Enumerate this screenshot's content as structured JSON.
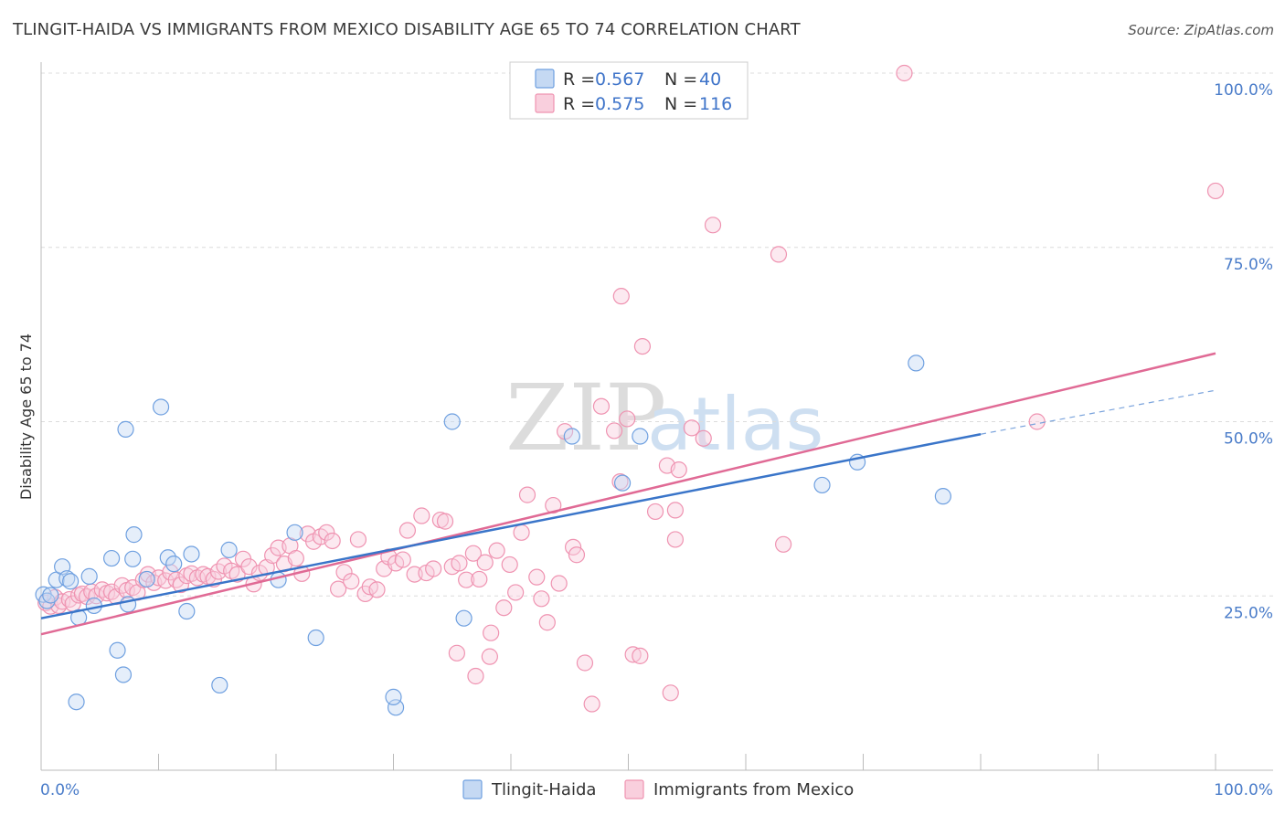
{
  "header": {
    "title": "TLINGIT-HAIDA VS IMMIGRANTS FROM MEXICO DISABILITY AGE 65 TO 74 CORRELATION CHART",
    "source": "Source: ZipAtlas.com"
  },
  "watermark": {
    "zip": "ZIP",
    "atlas": "atlas"
  },
  "legend": {
    "rows": [
      {
        "r_label": "R = ",
        "r_value": "0.567",
        "n_label": "N = ",
        "n_value": "40",
        "color": "#6fa0e0"
      },
      {
        "r_label": "R = ",
        "r_value": "0.575",
        "n_label": "N = ",
        "n_value": "116",
        "color": "#ef93b1"
      }
    ]
  },
  "bottom_legend": [
    {
      "label": "Tlingit-Haida",
      "color": "#6fa0e0"
    },
    {
      "label": "Immigrants from Mexico",
      "color": "#ef93b1"
    }
  ],
  "chart_data": {
    "type": "scatter",
    "title": "TLINGIT-HAIDA VS IMMIGRANTS FROM MEXICO DISABILITY AGE 65 TO 74 CORRELATION CHART",
    "xlabel": "",
    "ylabel": "Disability Age 65 to 74",
    "xlim": [
      0,
      100
    ],
    "ylim": [
      0,
      100
    ],
    "x_tick_labels": {
      "left": "0.0%",
      "right": "100.0%"
    },
    "y_ticks": [
      25,
      50,
      75,
      100
    ],
    "y_tick_labels": [
      "25.0%",
      "50.0%",
      "75.0%",
      "100.0%"
    ],
    "grid": true,
    "legend_position": "top-center",
    "series": [
      {
        "name": "Tlingit-Haida",
        "color": "#6fa0e0",
        "trend": {
          "x": [
            0,
            80
          ],
          "y": [
            21.8,
            48.2
          ],
          "dashed_extension_to": [
            100,
            54.5
          ]
        },
        "points": [
          [
            0.2,
            25.2
          ],
          [
            0.5,
            24.3
          ],
          [
            0.8,
            25.1
          ],
          [
            1.3,
            27.3
          ],
          [
            1.8,
            29.2
          ],
          [
            2.2,
            27.5
          ],
          [
            2.5,
            27.1
          ],
          [
            3.2,
            21.9
          ],
          [
            4.1,
            27.8
          ],
          [
            4.5,
            23.6
          ],
          [
            6.0,
            30.4
          ],
          [
            6.5,
            17.2
          ],
          [
            7.0,
            13.7
          ],
          [
            7.2,
            48.9
          ],
          [
            7.4,
            23.8
          ],
          [
            7.8,
            30.3
          ],
          [
            7.9,
            33.8
          ],
          [
            9.0,
            27.4
          ],
          [
            10.2,
            52.1
          ],
          [
            10.8,
            30.5
          ],
          [
            11.3,
            29.6
          ],
          [
            12.4,
            22.8
          ],
          [
            12.8,
            31.0
          ],
          [
            15.2,
            12.2
          ],
          [
            16.0,
            31.6
          ],
          [
            20.2,
            27.3
          ],
          [
            21.6,
            34.1
          ],
          [
            23.4,
            19.0
          ],
          [
            35.0,
            50.0
          ],
          [
            36.0,
            21.8
          ],
          [
            30.2,
            9.0
          ],
          [
            3.0,
            9.8
          ],
          [
            30.0,
            10.5
          ],
          [
            45.2,
            47.9
          ],
          [
            49.5,
            41.2
          ],
          [
            51.0,
            47.9
          ],
          [
            66.5,
            40.9
          ],
          [
            69.5,
            44.2
          ],
          [
            74.5,
            58.4
          ],
          [
            76.8,
            39.3
          ]
        ]
      },
      {
        "name": "Immigrants from Mexico",
        "color": "#ef93b1",
        "trend": {
          "x": [
            0,
            100
          ],
          "y": [
            19.5,
            59.8
          ]
        },
        "points": [
          [
            0.4,
            24.0
          ],
          [
            0.8,
            23.5
          ],
          [
            1.2,
            24.8
          ],
          [
            1.5,
            23.6
          ],
          [
            1.8,
            24.2
          ],
          [
            2.4,
            24.5
          ],
          [
            2.7,
            23.9
          ],
          [
            3.2,
            25.1
          ],
          [
            3.5,
            25.3
          ],
          [
            3.9,
            24.9
          ],
          [
            4.3,
            25.6
          ],
          [
            4.7,
            25.0
          ],
          [
            5.2,
            25.9
          ],
          [
            5.6,
            25.4
          ],
          [
            6.0,
            25.6
          ],
          [
            6.4,
            24.9
          ],
          [
            6.9,
            26.5
          ],
          [
            7.3,
            25.8
          ],
          [
            7.8,
            26.2
          ],
          [
            8.2,
            25.5
          ],
          [
            8.7,
            27.3
          ],
          [
            9.1,
            28.1
          ],
          [
            9.6,
            26.9
          ],
          [
            10.0,
            27.6
          ],
          [
            10.6,
            27.2
          ],
          [
            11.0,
            28.4
          ],
          [
            11.5,
            27.3
          ],
          [
            11.9,
            26.6
          ],
          [
            12.4,
            27.9
          ],
          [
            12.8,
            28.2
          ],
          [
            13.3,
            27.6
          ],
          [
            13.8,
            28.1
          ],
          [
            14.2,
            27.8
          ],
          [
            14.7,
            27.4
          ],
          [
            15.1,
            28.5
          ],
          [
            15.6,
            29.3
          ],
          [
            16.2,
            28.6
          ],
          [
            16.7,
            28.1
          ],
          [
            17.2,
            30.3
          ],
          [
            17.7,
            29.2
          ],
          [
            18.1,
            26.7
          ],
          [
            18.6,
            28.3
          ],
          [
            19.2,
            29.1
          ],
          [
            19.7,
            30.8
          ],
          [
            20.2,
            31.9
          ],
          [
            20.7,
            29.6
          ],
          [
            21.2,
            32.2
          ],
          [
            21.7,
            30.4
          ],
          [
            22.2,
            28.2
          ],
          [
            22.7,
            33.9
          ],
          [
            23.2,
            32.8
          ],
          [
            23.8,
            33.5
          ],
          [
            24.3,
            34.1
          ],
          [
            24.8,
            32.9
          ],
          [
            25.3,
            26.0
          ],
          [
            25.8,
            28.4
          ],
          [
            26.4,
            27.1
          ],
          [
            27.0,
            33.1
          ],
          [
            27.6,
            25.3
          ],
          [
            28.0,
            26.3
          ],
          [
            28.6,
            25.9
          ],
          [
            29.2,
            28.9
          ],
          [
            29.6,
            30.6
          ],
          [
            30.2,
            29.7
          ],
          [
            30.8,
            30.2
          ],
          [
            31.2,
            34.4
          ],
          [
            31.8,
            28.1
          ],
          [
            32.4,
            36.5
          ],
          [
            32.8,
            28.3
          ],
          [
            33.4,
            28.9
          ],
          [
            34.0,
            35.9
          ],
          [
            34.4,
            35.7
          ],
          [
            35.0,
            29.2
          ],
          [
            35.6,
            29.7
          ],
          [
            36.2,
            27.3
          ],
          [
            36.8,
            31.1
          ],
          [
            37.3,
            27.4
          ],
          [
            37.8,
            29.8
          ],
          [
            38.3,
            19.7
          ],
          [
            38.8,
            31.5
          ],
          [
            39.4,
            23.3
          ],
          [
            39.9,
            29.5
          ],
          [
            40.4,
            25.5
          ],
          [
            40.9,
            34.1
          ],
          [
            41.4,
            39.5
          ],
          [
            42.2,
            27.7
          ],
          [
            42.6,
            24.6
          ],
          [
            43.1,
            21.2
          ],
          [
            43.6,
            38.0
          ],
          [
            44.1,
            26.8
          ],
          [
            44.6,
            48.6
          ],
          [
            45.3,
            32.0
          ],
          [
            45.6,
            30.9
          ],
          [
            46.3,
            15.4
          ],
          [
            46.9,
            9.5
          ],
          [
            47.7,
            52.2
          ],
          [
            48.8,
            48.7
          ],
          [
            49.3,
            41.4
          ],
          [
            49.9,
            50.4
          ],
          [
            50.4,
            16.6
          ],
          [
            51.0,
            16.4
          ],
          [
            52.3,
            37.1
          ],
          [
            53.3,
            43.7
          ],
          [
            54.3,
            43.1
          ],
          [
            55.4,
            49.1
          ],
          [
            56.4,
            47.6
          ],
          [
            57.2,
            78.2
          ],
          [
            62.8,
            74.0
          ],
          [
            54.0,
            37.3
          ],
          [
            54.0,
            33.1
          ],
          [
            53.6,
            11.1
          ],
          [
            49.4,
            68.0
          ],
          [
            51.2,
            60.8
          ],
          [
            63.2,
            32.4
          ],
          [
            73.5,
            100.0
          ],
          [
            84.8,
            50.0
          ],
          [
            100.0,
            83.1
          ],
          [
            35.4,
            16.8
          ],
          [
            38.2,
            16.3
          ],
          [
            37.0,
            13.5
          ]
        ]
      }
    ]
  }
}
